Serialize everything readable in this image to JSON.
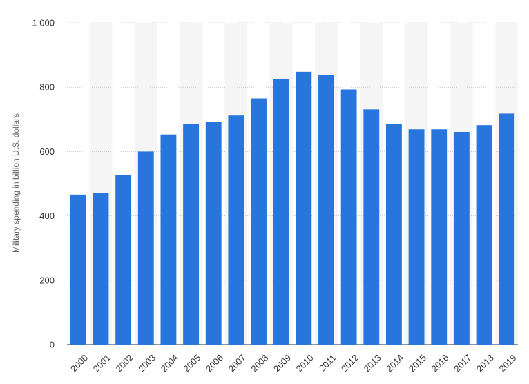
{
  "chart_data": {
    "type": "bar",
    "title": "",
    "xlabel": "",
    "ylabel": "Military spending in billion U.S. dollars",
    "ylim": [
      0,
      1000
    ],
    "yticks": [
      0,
      200,
      400,
      600,
      800,
      1000
    ],
    "ytick_labels": [
      "0",
      "200",
      "400",
      "600",
      "800",
      "1 000"
    ],
    "grid": true,
    "bar_color": "#2876dd",
    "band_color": "#f5f5f5",
    "categories": [
      "2000",
      "2001",
      "2002",
      "2003",
      "2004",
      "2005",
      "2006",
      "2007",
      "2008",
      "2009",
      "2010",
      "2011",
      "2012",
      "2013",
      "2014",
      "2015",
      "2016",
      "2017",
      "2018",
      "2019"
    ],
    "values": [
      466,
      471,
      528,
      600,
      653,
      685,
      693,
      712,
      765,
      825,
      848,
      838,
      793,
      731,
      685,
      669,
      669,
      661,
      682,
      718
    ]
  }
}
